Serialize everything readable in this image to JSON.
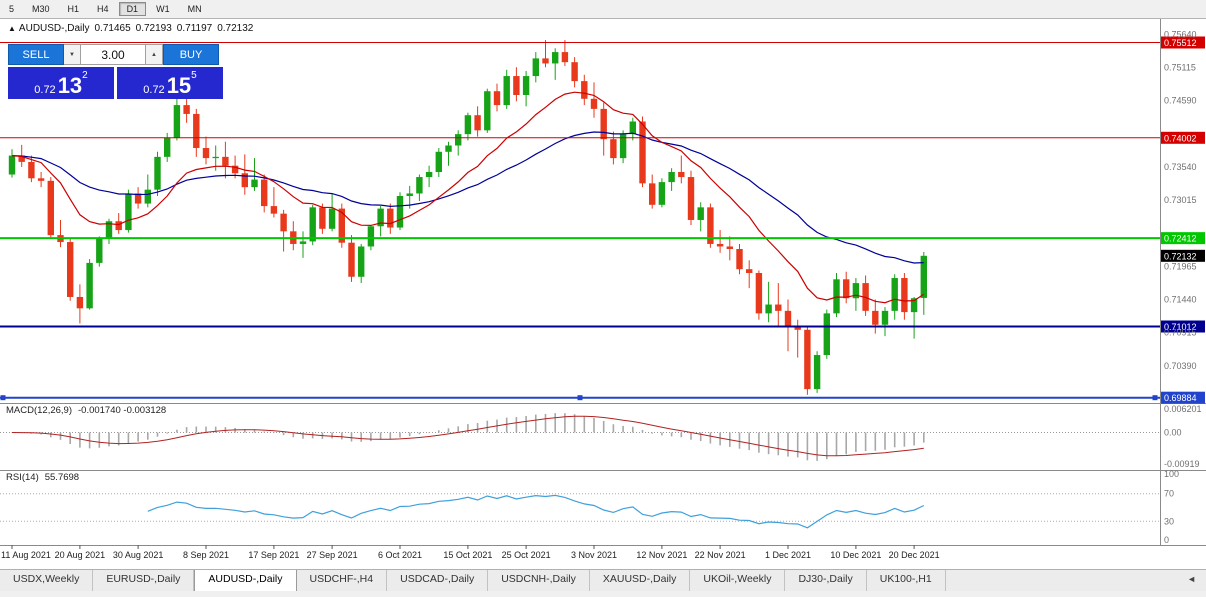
{
  "toolbar": {
    "timeframes": [
      "5",
      "M30",
      "H1",
      "H4",
      "D1",
      "W1",
      "MN"
    ],
    "active": "D1"
  },
  "chart": {
    "symbol": "AUDUSD-,Daily",
    "ohlc_header": {
      "open": "0.71465",
      "high": "0.72193",
      "low": "0.71197",
      "close": "0.72132"
    },
    "caption_icon": "▲"
  },
  "trade_panel": {
    "sell_label": "SELL",
    "buy_label": "BUY",
    "volume": "3.00",
    "spin_down_icon": "▼",
    "spin_up_icon": "▲",
    "sell_price": {
      "small": "0.72",
      "big": "13",
      "sup": "2"
    },
    "buy_price": {
      "small": "0.72",
      "big": "15",
      "sup": "5"
    }
  },
  "chart_data": {
    "type": "candlestick",
    "title": "AUDUSD-,Daily",
    "y_range": [
      0.698,
      0.759
    ],
    "grid": false,
    "colors": {
      "up": "#17A317",
      "down": "#E8391D",
      "ma_fast": "#CC0000",
      "ma_slow": "#000099",
      "macd_hist": "#A8A8A8",
      "macd_signal": "#B22222",
      "rsi": "#3FA0DC"
    },
    "overlays": {
      "ma_fast_period": 13,
      "ma_slow_period": 34
    },
    "axis_ticks": [
      "0.75640",
      "0.75115",
      "0.74590",
      "0.73540",
      "0.73015",
      "0.71965",
      "0.71440",
      "0.70915",
      "0.70390"
    ],
    "levels": [
      {
        "value": 0.75512,
        "label": "0.75512",
        "color": "#D40000",
        "width": 1
      },
      {
        "value": 0.74002,
        "label": "0.74002",
        "color": "#D40000",
        "width": 1
      },
      {
        "value": 0.72412,
        "label": "0.72412",
        "color": "#00C800",
        "width": 2
      },
      {
        "value": 0.71012,
        "label": "0.71012",
        "color": "#000090",
        "width": 2
      },
      {
        "value": 0.69884,
        "label": "0.69884",
        "color": "#2244CC",
        "width": 2,
        "handles": true
      }
    ],
    "current_price": {
      "value": 0.72132,
      "label": "0.72132",
      "bg": "#000000"
    },
    "x_labels": [
      [
        0,
        "11 Aug 2021"
      ],
      [
        7,
        "20 Aug 2021"
      ],
      [
        13,
        "30 Aug 2021"
      ],
      [
        20,
        "8 Sep 2021"
      ],
      [
        27,
        "17 Sep 2021"
      ],
      [
        33,
        "27 Sep 2021"
      ],
      [
        40,
        "6 Oct 2021"
      ],
      [
        47,
        "15 Oct 2021"
      ],
      [
        53,
        "25 Oct 2021"
      ],
      [
        60,
        "3 Nov 2021"
      ],
      [
        67,
        "12 Nov 2021"
      ],
      [
        73,
        "22 Nov 2021"
      ],
      [
        80,
        "1 Dec 2021"
      ],
      [
        87,
        "10 Dec 2021"
      ],
      [
        93,
        "20 Dec 2021"
      ]
    ],
    "candles": [
      [
        0.7342,
        0.7382,
        0.7337,
        0.7372
      ],
      [
        0.7372,
        0.7389,
        0.7354,
        0.7362
      ],
      [
        0.7362,
        0.7372,
        0.733,
        0.7336
      ],
      [
        0.7336,
        0.7346,
        0.7322,
        0.7332
      ],
      [
        0.7332,
        0.7338,
        0.724,
        0.7246
      ],
      [
        0.7246,
        0.727,
        0.7227,
        0.7235
      ],
      [
        0.7235,
        0.7242,
        0.7142,
        0.7148
      ],
      [
        0.7148,
        0.7168,
        0.7106,
        0.713
      ],
      [
        0.713,
        0.7208,
        0.7128,
        0.7202
      ],
      [
        0.7202,
        0.7244,
        0.7196,
        0.724
      ],
      [
        0.724,
        0.7272,
        0.7232,
        0.7268
      ],
      [
        0.7268,
        0.7281,
        0.7248,
        0.7254
      ],
      [
        0.7254,
        0.7318,
        0.725,
        0.7312
      ],
      [
        0.7312,
        0.7322,
        0.7288,
        0.7296
      ],
      [
        0.7296,
        0.7342,
        0.729,
        0.7318
      ],
      [
        0.7318,
        0.7378,
        0.7308,
        0.737
      ],
      [
        0.737,
        0.7408,
        0.7362,
        0.74
      ],
      [
        0.74,
        0.7477,
        0.7396,
        0.7452
      ],
      [
        0.7452,
        0.7462,
        0.7424,
        0.7438
      ],
      [
        0.7438,
        0.7446,
        0.737,
        0.7384
      ],
      [
        0.7384,
        0.7402,
        0.7358,
        0.7368
      ],
      [
        0.7368,
        0.7388,
        0.7348,
        0.737
      ],
      [
        0.737,
        0.7394,
        0.7336,
        0.7356
      ],
      [
        0.7356,
        0.7372,
        0.7336,
        0.7344
      ],
      [
        0.7344,
        0.7374,
        0.731,
        0.7322
      ],
      [
        0.7322,
        0.7368,
        0.7316,
        0.7334
      ],
      [
        0.7334,
        0.7342,
        0.7282,
        0.7292
      ],
      [
        0.7292,
        0.7322,
        0.7274,
        0.728
      ],
      [
        0.728,
        0.7286,
        0.722,
        0.7252
      ],
      [
        0.7252,
        0.7268,
        0.7222,
        0.7232
      ],
      [
        0.7232,
        0.7252,
        0.721,
        0.7236
      ],
      [
        0.7236,
        0.7294,
        0.723,
        0.729
      ],
      [
        0.729,
        0.7296,
        0.7248,
        0.7256
      ],
      [
        0.7256,
        0.7312,
        0.7252,
        0.7288
      ],
      [
        0.7288,
        0.7296,
        0.7226,
        0.7234
      ],
      [
        0.7234,
        0.7246,
        0.7172,
        0.718
      ],
      [
        0.718,
        0.7232,
        0.717,
        0.7228
      ],
      [
        0.7228,
        0.7262,
        0.7222,
        0.726
      ],
      [
        0.726,
        0.7292,
        0.7244,
        0.7288
      ],
      [
        0.7288,
        0.7296,
        0.7248,
        0.7258
      ],
      [
        0.7258,
        0.7314,
        0.7254,
        0.7308
      ],
      [
        0.7308,
        0.7324,
        0.7288,
        0.7312
      ],
      [
        0.7312,
        0.7342,
        0.73,
        0.7338
      ],
      [
        0.7338,
        0.7356,
        0.7322,
        0.7346
      ],
      [
        0.7346,
        0.7384,
        0.7338,
        0.7378
      ],
      [
        0.7378,
        0.7394,
        0.7356,
        0.7388
      ],
      [
        0.7388,
        0.7412,
        0.7372,
        0.7406
      ],
      [
        0.7406,
        0.744,
        0.7396,
        0.7436
      ],
      [
        0.7436,
        0.745,
        0.7402,
        0.7412
      ],
      [
        0.7412,
        0.7478,
        0.7408,
        0.7474
      ],
      [
        0.7474,
        0.7486,
        0.7442,
        0.7452
      ],
      [
        0.7452,
        0.7508,
        0.7446,
        0.7498
      ],
      [
        0.7498,
        0.7512,
        0.7458,
        0.7468
      ],
      [
        0.7468,
        0.7506,
        0.745,
        0.7498
      ],
      [
        0.7498,
        0.7536,
        0.7488,
        0.7526
      ],
      [
        0.7526,
        0.7555,
        0.7512,
        0.7518
      ],
      [
        0.7518,
        0.7542,
        0.7492,
        0.7536
      ],
      [
        0.7536,
        0.7555,
        0.7514,
        0.752
      ],
      [
        0.752,
        0.7528,
        0.748,
        0.749
      ],
      [
        0.749,
        0.75,
        0.7452,
        0.7462
      ],
      [
        0.7462,
        0.7488,
        0.7432,
        0.7446
      ],
      [
        0.7446,
        0.7456,
        0.7372,
        0.7398
      ],
      [
        0.7398,
        0.741,
        0.7358,
        0.7368
      ],
      [
        0.7368,
        0.7412,
        0.736,
        0.7406
      ],
      [
        0.7406,
        0.7432,
        0.7396,
        0.7426
      ],
      [
        0.7426,
        0.7434,
        0.7322,
        0.7328
      ],
      [
        0.7328,
        0.7342,
        0.7288,
        0.7294
      ],
      [
        0.7294,
        0.7336,
        0.729,
        0.733
      ],
      [
        0.733,
        0.7352,
        0.7316,
        0.7346
      ],
      [
        0.7346,
        0.7372,
        0.7328,
        0.7338
      ],
      [
        0.7338,
        0.7348,
        0.7262,
        0.727
      ],
      [
        0.727,
        0.7298,
        0.7252,
        0.729
      ],
      [
        0.729,
        0.7296,
        0.7226,
        0.7232
      ],
      [
        0.7232,
        0.7254,
        0.7218,
        0.7228
      ],
      [
        0.7228,
        0.7244,
        0.7206,
        0.7224
      ],
      [
        0.7224,
        0.7232,
        0.7184,
        0.7192
      ],
      [
        0.7192,
        0.7206,
        0.7162,
        0.7186
      ],
      [
        0.7186,
        0.719,
        0.7112,
        0.7122
      ],
      [
        0.7122,
        0.7172,
        0.7108,
        0.7136
      ],
      [
        0.7136,
        0.717,
        0.7102,
        0.7126
      ],
      [
        0.7126,
        0.7144,
        0.7062,
        0.7102
      ],
      [
        0.7102,
        0.7112,
        0.7052,
        0.7096
      ],
      [
        0.7096,
        0.7102,
        0.6993,
        0.7002
      ],
      [
        0.7002,
        0.7062,
        0.6996,
        0.7056
      ],
      [
        0.7056,
        0.7128,
        0.705,
        0.7122
      ],
      [
        0.7122,
        0.7186,
        0.7116,
        0.7176
      ],
      [
        0.7176,
        0.7188,
        0.7138,
        0.7146
      ],
      [
        0.7146,
        0.7178,
        0.7126,
        0.717
      ],
      [
        0.717,
        0.7182,
        0.7118,
        0.7126
      ],
      [
        0.7126,
        0.7144,
        0.709,
        0.7104
      ],
      [
        0.7104,
        0.7132,
        0.7086,
        0.7126
      ],
      [
        0.7126,
        0.7184,
        0.7112,
        0.7178
      ],
      [
        0.7178,
        0.7186,
        0.7112,
        0.7124
      ],
      [
        0.7124,
        0.7148,
        0.7082,
        0.7146
      ],
      [
        0.71465,
        0.72193,
        0.71197,
        0.72132
      ]
    ],
    "indicators": {
      "macd": {
        "title": "MACD(12,26,9)",
        "values": "-0.001740 -0.003128",
        "axis_labels": [
          "0.006201",
          "0.00",
          "-0.00919"
        ],
        "params": [
          12,
          26,
          9
        ]
      },
      "rsi": {
        "title": "RSI(14)",
        "value": "55.7698",
        "axis_labels": [
          "100",
          "70",
          "30",
          "0"
        ],
        "levels": [
          70,
          30
        ],
        "period": 14
      }
    }
  },
  "tabs": {
    "items": [
      "USDX,Weekly",
      "EURUSD-,Daily",
      "AUDUSD-,Daily",
      "USDCHF-,H4",
      "USDCAD-,Daily",
      "USDCNH-,Daily",
      "XAUUSD-,Daily",
      "UKOil-,Weekly",
      "DJ30-,Daily",
      "UK100-,H1"
    ],
    "active_index": 2,
    "scroll_left_icon": "◄"
  }
}
